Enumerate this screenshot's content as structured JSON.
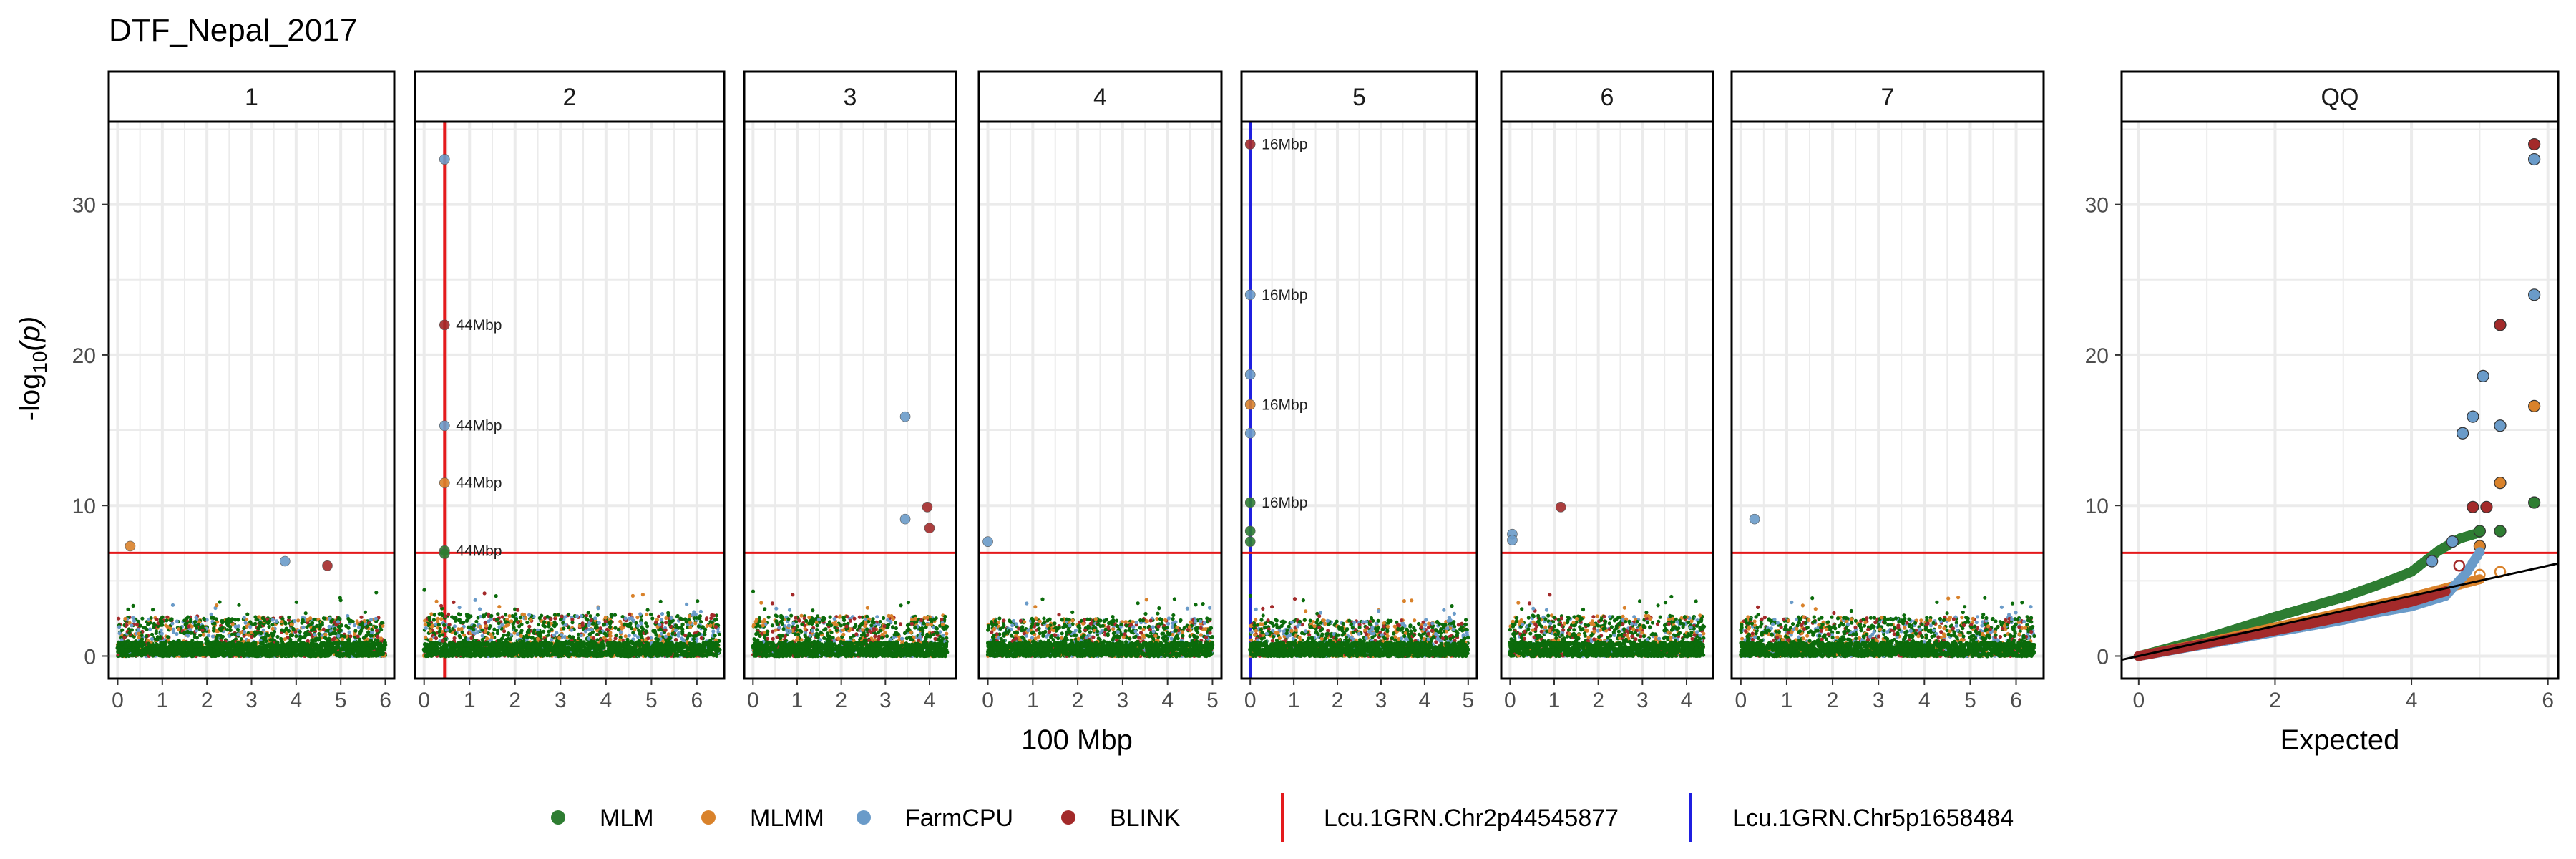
{
  "title": "DTF_Nepal_2017",
  "colors": {
    "MLM": "#2E7D32",
    "MLMM": "#D9822B",
    "FarmCPU": "#6A9BC9",
    "BLINK": "#A32A2A",
    "bulk": "#0B6B0B",
    "threshold": "#E41A1C",
    "marker_chr2": "#E41A1C",
    "marker_chr5": "#1F1FE0",
    "strip_bg": "#FFFFFF",
    "grid": "#EBEBEB"
  },
  "chart_data": [
    {
      "type": "scatter",
      "name": "manhattan",
      "ylabel": "-log",
      "ylabel_sub": "10",
      "ylabel_end": "(p)",
      "xlabel": "100 Mbp",
      "ylim": [
        -1.5,
        35.5
      ],
      "yticks": [
        0,
        10,
        20,
        30
      ],
      "threshold": 6.85,
      "grid": true,
      "panels": [
        {
          "strip": "1",
          "xlim": [
            -0.2,
            6.2
          ],
          "xticks": [
            0,
            1,
            2,
            3,
            4,
            5,
            6
          ],
          "max": 6.0,
          "bulk_top": 2.6,
          "points": [
            {
              "x": 0.28,
              "y": 7.3,
              "series": "MLMM"
            },
            {
              "x": 3.75,
              "y": 6.3,
              "series": "FarmCPU"
            },
            {
              "x": 4.7,
              "y": 6.0,
              "series": "BLINK"
            }
          ],
          "labels": []
        },
        {
          "strip": "2",
          "xlim": [
            -0.2,
            6.6
          ],
          "xticks": [
            0,
            1,
            2,
            3,
            4,
            5,
            6
          ],
          "max": 6.5,
          "bulk_top": 2.8,
          "marker": {
            "x": 0.45,
            "color_key": "marker_chr2"
          },
          "points": [
            {
              "x": 0.45,
              "y": 33.0,
              "series": "FarmCPU"
            },
            {
              "x": 0.45,
              "y": 22.0,
              "series": "BLINK"
            },
            {
              "x": 0.45,
              "y": 15.3,
              "series": "FarmCPU"
            },
            {
              "x": 0.45,
              "y": 11.5,
              "series": "MLMM"
            },
            {
              "x": 0.45,
              "y": 7.0,
              "series": "MLM"
            },
            {
              "x": 0.45,
              "y": 6.8,
              "series": "MLM"
            }
          ],
          "labels": [
            {
              "x": 0.45,
              "y": 22.0,
              "text": "44Mbp"
            },
            {
              "x": 0.45,
              "y": 15.3,
              "text": "44Mbp"
            },
            {
              "x": 0.45,
              "y": 11.5,
              "text": "44Mbp"
            },
            {
              "x": 0.45,
              "y": 7.0,
              "text": "44Mbp"
            }
          ]
        },
        {
          "strip": "3",
          "xlim": [
            -0.2,
            4.6
          ],
          "xticks": [
            0,
            1,
            2,
            3,
            4
          ],
          "max": 4.4,
          "bulk_top": 2.7,
          "points": [
            {
              "x": 3.45,
              "y": 15.9,
              "series": "FarmCPU"
            },
            {
              "x": 3.95,
              "y": 9.9,
              "series": "BLINK"
            },
            {
              "x": 3.45,
              "y": 9.1,
              "series": "FarmCPU"
            },
            {
              "x": 4.0,
              "y": 8.5,
              "series": "BLINK"
            }
          ],
          "labels": []
        },
        {
          "strip": "4",
          "xlim": [
            -0.2,
            5.2
          ],
          "xticks": [
            0,
            1,
            2,
            3,
            4,
            5
          ],
          "max": 5.0,
          "bulk_top": 2.5,
          "points": [
            {
              "x": 0.0,
              "y": 7.6,
              "series": "FarmCPU"
            }
          ],
          "labels": []
        },
        {
          "strip": "5",
          "xlim": [
            -0.2,
            5.2
          ],
          "xticks": [
            0,
            1,
            2,
            3,
            4,
            5
          ],
          "max": 5.0,
          "bulk_top": 2.4,
          "marker": {
            "x": 0.0,
            "color_key": "marker_chr5"
          },
          "points": [
            {
              "x": 0.0,
              "y": 34.0,
              "series": "BLINK"
            },
            {
              "x": 0.0,
              "y": 24.0,
              "series": "FarmCPU"
            },
            {
              "x": 0.0,
              "y": 18.7,
              "series": "FarmCPU"
            },
            {
              "x": 0.0,
              "y": 16.7,
              "series": "MLMM"
            },
            {
              "x": 0.0,
              "y": 14.8,
              "series": "FarmCPU"
            },
            {
              "x": 0.0,
              "y": 10.2,
              "series": "MLM"
            },
            {
              "x": 0.0,
              "y": 8.3,
              "series": "MLM"
            },
            {
              "x": 0.0,
              "y": 7.6,
              "series": "MLM"
            }
          ],
          "labels": [
            {
              "x": 0.0,
              "y": 34.0,
              "text": "16Mbp"
            },
            {
              "x": 0.0,
              "y": 24.0,
              "text": "16Mbp"
            },
            {
              "x": 0.0,
              "y": 16.7,
              "text": "16Mbp"
            },
            {
              "x": 0.0,
              "y": 10.2,
              "text": "16Mbp"
            }
          ]
        },
        {
          "strip": "6",
          "xlim": [
            -0.2,
            4.6
          ],
          "xticks": [
            0,
            1,
            2,
            3,
            4
          ],
          "max": 4.4,
          "bulk_top": 2.7,
          "points": [
            {
              "x": 0.05,
              "y": 8.1,
              "series": "FarmCPU"
            },
            {
              "x": 0.05,
              "y": 7.7,
              "series": "FarmCPU"
            },
            {
              "x": 1.15,
              "y": 9.9,
              "series": "BLINK"
            }
          ],
          "labels": []
        },
        {
          "strip": "7",
          "xlim": [
            -0.2,
            6.6
          ],
          "xticks": [
            0,
            1,
            2,
            3,
            4,
            5,
            6
          ],
          "max": 6.4,
          "bulk_top": 2.6,
          "points": [
            {
              "x": 0.3,
              "y": 9.1,
              "series": "FarmCPU"
            }
          ],
          "labels": []
        }
      ]
    },
    {
      "type": "scatter",
      "name": "qq",
      "strip": "QQ",
      "xlabel": "Expected",
      "xlim": [
        -0.25,
        6.15
      ],
      "ylim": [
        -1.5,
        35.5
      ],
      "xticks": [
        0,
        2,
        4,
        6
      ],
      "yticks": [
        0,
        10,
        20,
        30
      ],
      "threshold": 6.85,
      "diagonal_slope": 1.0,
      "series": [
        {
          "name": "MLM",
          "curve": [
            [
              0,
              0
            ],
            [
              1,
              1.2
            ],
            [
              2,
              2.6
            ],
            [
              3,
              3.9
            ],
            [
              3.5,
              4.7
            ],
            [
              4,
              5.6
            ],
            [
              4.4,
              7.0
            ],
            [
              4.7,
              7.8
            ],
            [
              5.0,
              8.2
            ]
          ],
          "outliers": [
            {
              "x": 5.0,
              "y": 8.3,
              "open": false
            },
            {
              "x": 5.3,
              "y": 8.3,
              "open": false
            },
            {
              "x": 5.8,
              "y": 10.2,
              "open": false
            }
          ]
        },
        {
          "name": "MLMM",
          "curve": [
            [
              0,
              0
            ],
            [
              1,
              0.9
            ],
            [
              2,
              1.9
            ],
            [
              3,
              2.9
            ],
            [
              3.5,
              3.4
            ],
            [
              4,
              3.9
            ],
            [
              4.5,
              4.5
            ],
            [
              5.0,
              5.1
            ]
          ],
          "outliers": [
            {
              "x": 4.7,
              "y": 4.8,
              "open": true
            },
            {
              "x": 5.0,
              "y": 5.4,
              "open": true
            },
            {
              "x": 5.3,
              "y": 5.6,
              "open": true
            },
            {
              "x": 5.0,
              "y": 7.3,
              "open": false
            },
            {
              "x": 5.3,
              "y": 11.5,
              "open": false
            },
            {
              "x": 5.8,
              "y": 16.6,
              "open": false
            }
          ]
        },
        {
          "name": "FarmCPU",
          "curve": [
            [
              0,
              0
            ],
            [
              1,
              0.8
            ],
            [
              2,
              1.6
            ],
            [
              3,
              2.4
            ],
            [
              3.5,
              2.9
            ],
            [
              4,
              3.3
            ],
            [
              4.5,
              4.0
            ],
            [
              4.8,
              5.5
            ],
            [
              5.0,
              6.9
            ]
          ],
          "outliers": [
            {
              "x": 4.3,
              "y": 6.3,
              "open": false
            },
            {
              "x": 4.6,
              "y": 7.6,
              "open": false
            },
            {
              "x": 4.75,
              "y": 14.8,
              "open": false
            },
            {
              "x": 4.9,
              "y": 15.9,
              "open": false
            },
            {
              "x": 5.05,
              "y": 18.6,
              "open": false
            },
            {
              "x": 5.3,
              "y": 15.3,
              "open": false
            },
            {
              "x": 5.8,
              "y": 24.0,
              "open": false
            },
            {
              "x": 5.8,
              "y": 33.0,
              "open": false
            }
          ]
        },
        {
          "name": "BLINK",
          "curve": [
            [
              0,
              0
            ],
            [
              1,
              0.85
            ],
            [
              2,
              1.7
            ],
            [
              3,
              2.6
            ],
            [
              3.5,
              3.1
            ],
            [
              4,
              3.6
            ],
            [
              4.5,
              4.3
            ]
          ],
          "outliers": [
            {
              "x": 4.7,
              "y": 6.0,
              "open": true
            },
            {
              "x": 4.9,
              "y": 9.9,
              "open": false
            },
            {
              "x": 5.1,
              "y": 9.9,
              "open": false
            },
            {
              "x": 5.3,
              "y": 22.0,
              "open": false
            },
            {
              "x": 5.8,
              "y": 34.0,
              "open": false
            }
          ]
        }
      ]
    }
  ],
  "legend": {
    "series": [
      "MLM",
      "MLMM",
      "FarmCPU",
      "BLINK"
    ],
    "markers": [
      {
        "label": "Lcu.1GRN.Chr2p44545877",
        "color_key": "marker_chr2"
      },
      {
        "label": "Lcu.1GRN.Chr5p1658484",
        "color_key": "marker_chr5"
      }
    ]
  }
}
